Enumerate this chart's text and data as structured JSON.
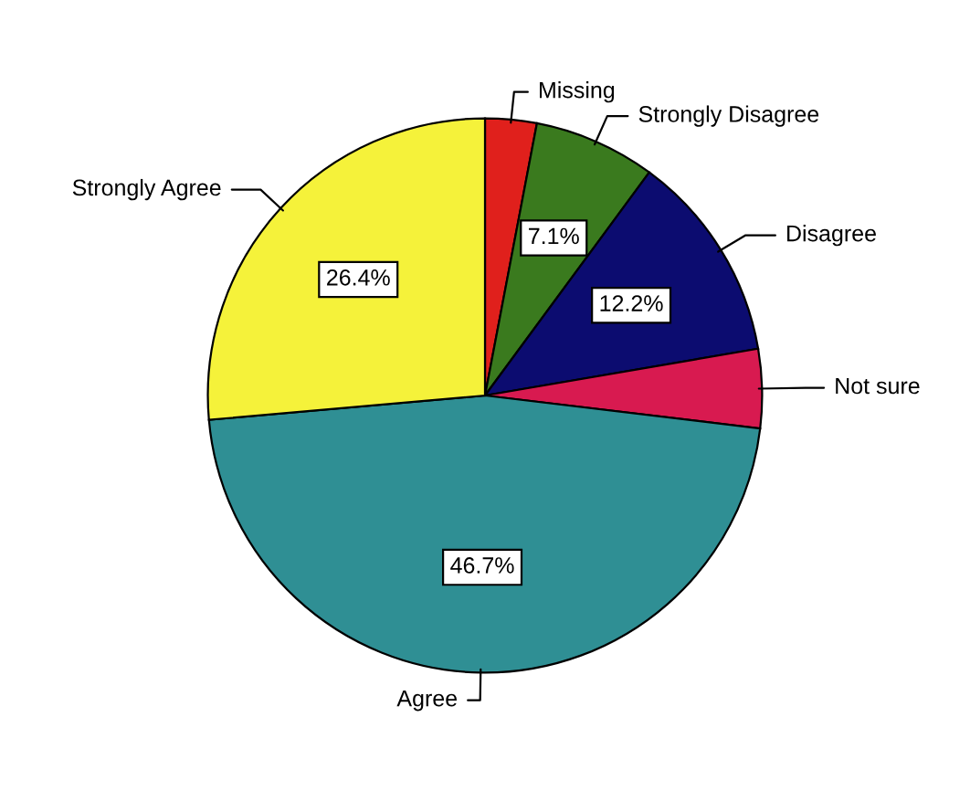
{
  "chart_data": {
    "type": "pie",
    "categories": [
      "Missing",
      "Strongly Disagree",
      "Disagree",
      "Not sure",
      "Agree",
      "Strongly Agree"
    ],
    "values": [
      3.0,
      7.1,
      12.2,
      4.6,
      46.7,
      26.4
    ],
    "colors": [
      "#e0201c",
      "#3a7a1e",
      "#0c0c70",
      "#d81a50",
      "#2f8f94",
      "#f5f23a"
    ],
    "value_labels": [
      null,
      "7.1%",
      "12.2%",
      null,
      "46.7%",
      "26.4%"
    ],
    "legend": false
  }
}
